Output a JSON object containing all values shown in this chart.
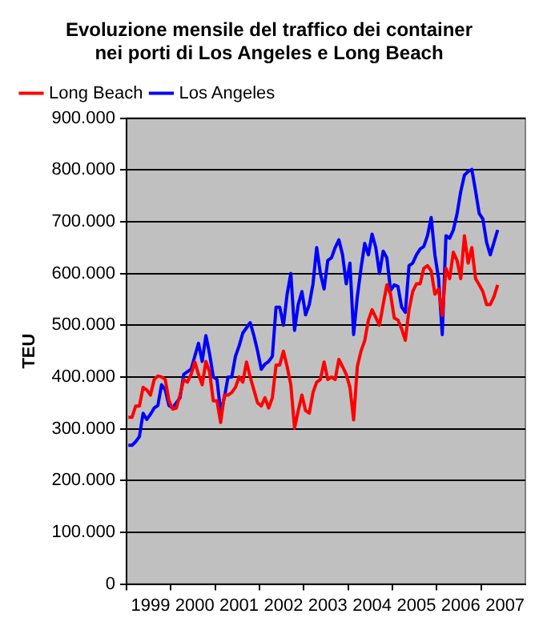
{
  "chart_data": {
    "type": "line",
    "title": "Evoluzione mensile del traffico dei container\nnei porti di Los Angeles e Long Beach",
    "ylabel": "TEU",
    "categories": [
      null,
      null,
      null,
      null,
      null,
      null,
      "1999",
      null,
      null,
      null,
      null,
      null,
      null,
      null,
      null,
      null,
      null,
      null,
      "2000",
      null,
      null,
      null,
      null,
      null,
      null,
      null,
      null,
      null,
      null,
      null,
      "2001",
      null,
      null,
      null,
      null,
      null,
      null,
      null,
      null,
      null,
      null,
      null,
      "2002",
      null,
      null,
      null,
      null,
      null,
      null,
      null,
      null,
      null,
      null,
      null,
      "2003",
      null,
      null,
      null,
      null,
      null,
      null,
      null,
      null,
      null,
      null,
      null,
      "2004",
      null,
      null,
      null,
      null,
      null,
      null,
      null,
      null,
      null,
      null,
      null,
      "2005",
      null,
      null,
      null,
      null,
      null,
      null,
      null,
      null,
      null,
      null,
      null,
      "2006",
      null,
      null,
      null,
      null,
      null,
      null,
      null,
      null,
      null,
      null,
      null,
      "2007",
      null,
      null,
      null,
      null,
      null
    ],
    "series": [
      {
        "name": "Los Angeles",
        "color": "#0000ff",
        "values": [
          268000,
          268000,
          275000,
          285000,
          330000,
          318000,
          328000,
          340000,
          345000,
          385000,
          375000,
          345000,
          340000,
          350000,
          360000,
          405000,
          410000,
          415000,
          440000,
          465000,
          430000,
          480000,
          445000,
          400000,
          395000,
          333000,
          360000,
          400000,
          400000,
          440000,
          460000,
          485000,
          495000,
          505000,
          480000,
          450000,
          415000,
          425000,
          430000,
          440000,
          535000,
          535000,
          500000,
          560000,
          600000,
          490000,
          540000,
          565000,
          520000,
          540000,
          580000,
          650000,
          600000,
          570000,
          625000,
          630000,
          650000,
          665000,
          636000,
          580000,
          620000,
          482000,
          555000,
          610000,
          658000,
          636000,
          676000,
          650000,
          600000,
          643000,
          630000,
          567000,
          578000,
          575000,
          535000,
          525000,
          615000,
          620000,
          636000,
          647000,
          652000,
          673000,
          708000,
          636000,
          590000,
          482000,
          673000,
          668000,
          684000,
          715000,
          758000,
          790000,
          797000,
          801000,
          760000,
          716000,
          705000,
          660000,
          636000,
          660000,
          684000,
          null,
          null,
          null,
          null,
          null,
          null,
          null
        ]
      },
      {
        "name": "Long Beach",
        "color": "#ff0000",
        "values": [
          322000,
          322000,
          344000,
          344000,
          380000,
          375000,
          365000,
          395000,
          402000,
          400000,
          395000,
          354000,
          338000,
          340000,
          365000,
          395000,
          390000,
          405000,
          429000,
          405000,
          385000,
          430000,
          410000,
          354000,
          354000,
          312000,
          365000,
          365000,
          370000,
          380000,
          400000,
          390000,
          429000,
          400000,
          375000,
          350000,
          344000,
          360000,
          340000,
          360000,
          423000,
          423000,
          450000,
          420000,
          385000,
          301000,
          335000,
          365000,
          335000,
          330000,
          370000,
          390000,
          395000,
          429000,
          395000,
          400000,
          395000,
          434000,
          420000,
          405000,
          380000,
          317000,
          420000,
          450000,
          470000,
          510000,
          530000,
          515000,
          500000,
          540000,
          578000,
          560000,
          514000,
          510000,
          493000,
          471000,
          530000,
          565000,
          580000,
          580000,
          610000,
          615000,
          605000,
          560000,
          570000,
          519000,
          610000,
          590000,
          641000,
          625000,
          590000,
          673000,
          620000,
          650000,
          590000,
          578000,
          565000,
          540000,
          540000,
          555000,
          578000,
          null,
          null,
          null,
          null,
          null,
          null,
          null
        ]
      }
    ],
    "ylim": [
      0,
      900000
    ],
    "yticks": [
      {
        "value": 0,
        "label": "0"
      },
      {
        "value": 100000,
        "label": "100.000"
      },
      {
        "value": 200000,
        "label": "200.000"
      },
      {
        "value": 300000,
        "label": "300.000"
      },
      {
        "value": 400000,
        "label": "400.000"
      },
      {
        "value": 500000,
        "label": "500.000"
      },
      {
        "value": 600000,
        "label": "600.000"
      },
      {
        "value": 700000,
        "label": "700.000"
      },
      {
        "value": 800000,
        "label": "800.000"
      },
      {
        "value": 900000,
        "label": "900.000"
      }
    ],
    "grid": "y",
    "legend": "top",
    "marker": "none",
    "line_style": "solid"
  }
}
